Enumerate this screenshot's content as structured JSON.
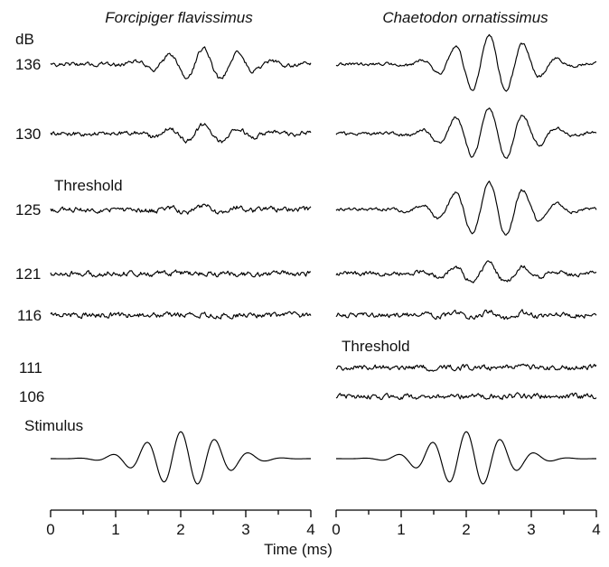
{
  "chart_data": {
    "type": "line",
    "xlabel": "Time (ms)",
    "y_unit_label": "dB",
    "x_ticks": [
      "0",
      "1",
      "2",
      "3",
      "4"
    ],
    "xlim": [
      0,
      4
    ],
    "panels": [
      {
        "title": "Forcipiger flavissimus",
        "threshold_label": "Threshold",
        "threshold_level": "125",
        "traces": [
          {
            "level": "136",
            "response": 0.55
          },
          {
            "level": "130",
            "response": 0.3
          },
          {
            "level": "125",
            "response": 0.12
          },
          {
            "level": "121",
            "response": 0.0
          },
          {
            "level": "116",
            "response": 0.0
          }
        ],
        "stimulus_label": "Stimulus"
      },
      {
        "title": "Chaetodon ornatissimus",
        "threshold_label": "Threshold",
        "threshold_level": "116",
        "traces": [
          {
            "level": "136",
            "response": 1.0
          },
          {
            "level": "130",
            "response": 0.9
          },
          {
            "level": "125",
            "response": 0.95
          },
          {
            "level": "121",
            "response": 0.35
          },
          {
            "level": "116",
            "response": 0.12
          },
          {
            "level": "111",
            "response": 0.0
          },
          {
            "level": "106",
            "response": 0.0
          }
        ],
        "stimulus_label": ""
      }
    ]
  }
}
